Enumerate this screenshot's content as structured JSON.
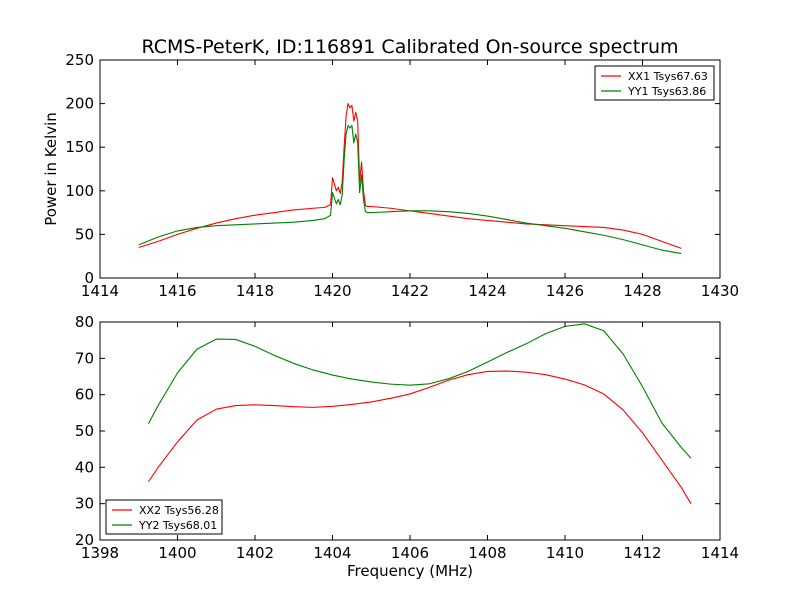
{
  "title": "RCMS-PeterK, ID:116891 Calibrated On-source spectrum",
  "chart_data": [
    {
      "type": "line",
      "xlabel": "",
      "ylabel": "Power in Kelvin",
      "xlim": [
        1414,
        1430
      ],
      "ylim": [
        0,
        250
      ],
      "xticks": [
        1414,
        1416,
        1418,
        1420,
        1422,
        1424,
        1426,
        1428,
        1430
      ],
      "yticks": [
        0,
        50,
        100,
        150,
        200,
        250
      ],
      "legend": "top-right",
      "series": [
        {
          "name": "XX1 Tsys67.63",
          "color": "#ff0000",
          "x": [
            1415,
            1415.5,
            1416,
            1416.5,
            1417,
            1417.5,
            1418,
            1418.5,
            1419,
            1419.5,
            1419.8,
            1419.95,
            1420.0,
            1420.1,
            1420.15,
            1420.2,
            1420.25,
            1420.3,
            1420.35,
            1420.4,
            1420.45,
            1420.5,
            1420.55,
            1420.6,
            1420.65,
            1420.7,
            1420.75,
            1420.8,
            1420.85,
            1420.9,
            1421,
            1421.5,
            1422,
            1422.5,
            1423,
            1423.5,
            1424,
            1424.5,
            1425,
            1425.5,
            1426,
            1426.5,
            1427,
            1427.5,
            1428,
            1428.5,
            1429
          ],
          "y": [
            35,
            42,
            50,
            57,
            63,
            68,
            72,
            75,
            78,
            80,
            81,
            84,
            115,
            100,
            104,
            97,
            110,
            150,
            185,
            200,
            195,
            198,
            180,
            190,
            180,
            110,
            133,
            100,
            83,
            82,
            82,
            80,
            77,
            74,
            71,
            68,
            66,
            64,
            62,
            61,
            60,
            59,
            58,
            55,
            50,
            42,
            34
          ]
        },
        {
          "name": "YY1 Tsys63.86",
          "color": "#008000",
          "x": [
            1415,
            1415.5,
            1416,
            1416.5,
            1417,
            1417.5,
            1418,
            1418.5,
            1419,
            1419.5,
            1419.8,
            1419.95,
            1420.0,
            1420.1,
            1420.15,
            1420.2,
            1420.25,
            1420.3,
            1420.35,
            1420.4,
            1420.45,
            1420.5,
            1420.55,
            1420.6,
            1420.65,
            1420.7,
            1420.75,
            1420.8,
            1420.85,
            1420.9,
            1421,
            1421.5,
            1422,
            1422.5,
            1423,
            1423.5,
            1424,
            1424.5,
            1425,
            1425.5,
            1426,
            1426.5,
            1427,
            1427.5,
            1428,
            1428.5,
            1429
          ],
          "y": [
            38,
            47,
            54,
            58,
            60,
            61,
            62,
            63,
            64,
            66,
            68,
            72,
            98,
            85,
            90,
            84,
            95,
            135,
            165,
            175,
            172,
            175,
            155,
            165,
            155,
            98,
            118,
            90,
            76,
            75,
            75,
            76,
            77,
            77,
            76,
            74,
            71,
            67,
            63,
            60,
            57,
            53,
            49,
            44,
            38,
            32,
            28
          ]
        }
      ]
    },
    {
      "type": "line",
      "xlabel": "Frequency (MHz)",
      "ylabel": "",
      "xlim": [
        1398,
        1414
      ],
      "ylim": [
        20,
        80
      ],
      "xticks": [
        1398,
        1400,
        1402,
        1404,
        1406,
        1408,
        1410,
        1412,
        1414
      ],
      "yticks": [
        20,
        30,
        40,
        50,
        60,
        70,
        80
      ],
      "legend": "bottom-left",
      "series": [
        {
          "name": "XX2 Tsys56.28",
          "color": "#ff0000",
          "x": [
            1399.25,
            1399.5,
            1400,
            1400.5,
            1401,
            1401.5,
            1402,
            1402.5,
            1403,
            1403.5,
            1404,
            1404.5,
            1405,
            1405.5,
            1406,
            1406.5,
            1407,
            1407.5,
            1408,
            1408.5,
            1409,
            1409.5,
            1410,
            1410.5,
            1411,
            1411.5,
            1412,
            1412.5,
            1413,
            1413.25
          ],
          "y": [
            36,
            40,
            47,
            53,
            56,
            57,
            57.2,
            57,
            56.7,
            56.5,
            56.8,
            57.3,
            58,
            59,
            60.2,
            62,
            64,
            65.5,
            66.4,
            66.5,
            66.2,
            65.5,
            64.3,
            62.7,
            60.2,
            55.8,
            49.5,
            42,
            34.5,
            30
          ]
        },
        {
          "name": "YY2 Tsys68.01",
          "color": "#008000",
          "x": [
            1399.25,
            1399.5,
            1400,
            1400.5,
            1401,
            1401.5,
            1402,
            1402.5,
            1403,
            1403.5,
            1404,
            1404.5,
            1405,
            1405.5,
            1406,
            1406.5,
            1407,
            1407.5,
            1408,
            1408.5,
            1409,
            1409.5,
            1410,
            1410.5,
            1411,
            1411.5,
            1412,
            1412.5,
            1413,
            1413.25
          ],
          "y": [
            52,
            57,
            66,
            72.5,
            75.3,
            75.2,
            73.3,
            70.8,
            68.6,
            66.8,
            65.4,
            64.3,
            63.5,
            62.9,
            62.6,
            63,
            64.4,
            66.4,
            69,
            71.6,
            74,
            76.8,
            78.8,
            79.5,
            77.6,
            71.2,
            62.2,
            52.2,
            45.5,
            42.5
          ]
        }
      ]
    }
  ]
}
